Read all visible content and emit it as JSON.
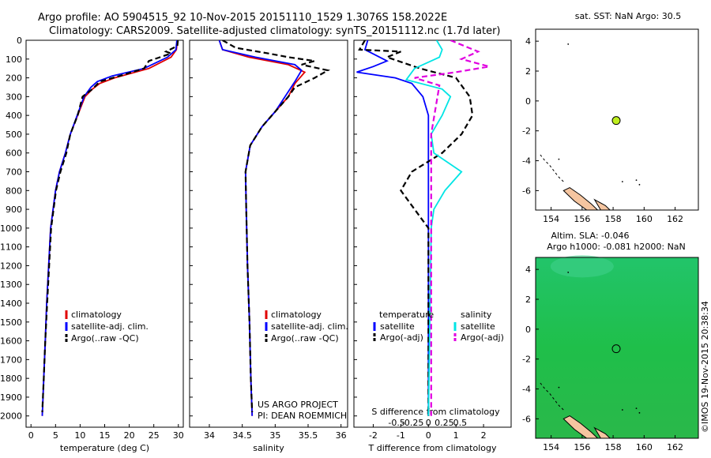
{
  "header": {
    "line1": "Argo profile: AO 5904515_92 10-Nov-2015 20151110_1529 1.3076S 158.2022E",
    "line2": "Climatology: CARS2009. Satellite-adjusted climatology: synTS_20151112.nc (1.7d later)"
  },
  "credit": "US ARGO PROJECT",
  "pi": "PI: DEAN ROEMMICH",
  "footer_stamp": "©IMOS 19-Nov-2015 20:38:34",
  "colors": {
    "climatology": "#e00000",
    "satellite": "#0000ff",
    "argo": "#000000",
    "cyan": "#00e5e5",
    "magenta": "#e000e0",
    "float": "#bfef1f",
    "land": "#f5c5a0",
    "sla_bg": "#1fc062"
  },
  "chart_data": [
    {
      "type": "line",
      "id": "temperature",
      "xlabel": "temperature (deg C)",
      "xlim": [
        -1,
        31
      ],
      "ylim": [
        0,
        2060
      ],
      "xticks": [
        0,
        5,
        10,
        15,
        20,
        25,
        30
      ],
      "yticks": [
        0,
        100,
        200,
        300,
        400,
        500,
        600,
        700,
        800,
        900,
        1000,
        1100,
        1200,
        1300,
        1400,
        1500,
        1600,
        1700,
        1800,
        1900,
        2000
      ],
      "legend": [
        "climatology",
        "satellite-adj. clim.",
        "Argo(..raw -QC)"
      ],
      "series": [
        {
          "name": "climatology",
          "style": "solid",
          "color": "#e00000",
          "points": [
            [
              29.8,
              0
            ],
            [
              29.6,
              50
            ],
            [
              28.5,
              90
            ],
            [
              24,
              150
            ],
            [
              17,
              200
            ],
            [
              14,
              230
            ],
            [
              12.5,
              260
            ],
            [
              11,
              300
            ],
            [
              9.5,
              400
            ],
            [
              8,
              500
            ],
            [
              7,
              600
            ],
            [
              5.8,
              700
            ],
            [
              5,
              800
            ],
            [
              4.5,
              900
            ],
            [
              4,
              1000
            ],
            [
              3.6,
              1200
            ],
            [
              3.2,
              1400
            ],
            [
              2.9,
              1600
            ],
            [
              2.6,
              1800
            ],
            [
              2.3,
              2000
            ]
          ]
        },
        {
          "name": "satellite-adj. clim.",
          "style": "solid",
          "color": "#0000ff",
          "points": [
            [
              29.7,
              0
            ],
            [
              29.5,
              50
            ],
            [
              27.8,
              90
            ],
            [
              23,
              150
            ],
            [
              16.5,
              190
            ],
            [
              13.5,
              220
            ],
            [
              12.2,
              250
            ],
            [
              10.8,
              300
            ],
            [
              9.4,
              400
            ],
            [
              8,
              500
            ],
            [
              7,
              600
            ],
            [
              5.8,
              700
            ],
            [
              5,
              800
            ],
            [
              4.5,
              900
            ],
            [
              4,
              1000
            ],
            [
              3.6,
              1200
            ],
            [
              3.2,
              1400
            ],
            [
              2.9,
              1600
            ],
            [
              2.6,
              1800
            ],
            [
              2.3,
              2000
            ]
          ]
        },
        {
          "name": "Argo(..raw -QC)",
          "style": "dashed",
          "color": "#000000",
          "points": [
            [
              29.9,
              0
            ],
            [
              29.8,
              30
            ],
            [
              27.5,
              60
            ],
            [
              28.5,
              70
            ],
            [
              24,
              110
            ],
            [
              23,
              150
            ],
            [
              18,
              190
            ],
            [
              14,
              220
            ],
            [
              12.5,
              260
            ],
            [
              10.5,
              300
            ],
            [
              9.5,
              400
            ],
            [
              8,
              500
            ],
            [
              7.2,
              600
            ],
            [
              6,
              700
            ],
            [
              5.1,
              800
            ],
            [
              4.6,
              900
            ],
            [
              4.1,
              1000
            ],
            [
              3.7,
              1200
            ],
            [
              3.3,
              1400
            ],
            [
              2.9,
              1600
            ],
            [
              2.6,
              1800
            ],
            [
              2.3,
              1980
            ]
          ]
        }
      ]
    },
    {
      "type": "line",
      "id": "salinity",
      "xlabel": "salinity",
      "xlim": [
        33.7,
        36.1
      ],
      "ylim": [
        0,
        2060
      ],
      "xticks": [
        34,
        34.5,
        35,
        35.5,
        36
      ],
      "yticks": [
        0,
        100,
        200,
        300,
        400,
        500,
        600,
        700,
        800,
        900,
        1000,
        1100,
        1200,
        1300,
        1400,
        1500,
        1600,
        1700,
        1800,
        1900,
        2000
      ],
      "legend": [
        "climatology",
        "satellite-adj. clim.",
        "Argo(..raw -QC)"
      ],
      "series": [
        {
          "name": "climatology",
          "style": "solid",
          "color": "#e00000",
          "points": [
            [
              34.15,
              0
            ],
            [
              34.2,
              50
            ],
            [
              34.6,
              90
            ],
            [
              35.2,
              130
            ],
            [
              35.45,
              170
            ],
            [
              35.3,
              230
            ],
            [
              35.2,
              300
            ],
            [
              35.0,
              380
            ],
            [
              34.8,
              460
            ],
            [
              34.62,
              560
            ],
            [
              34.55,
              700
            ],
            [
              34.56,
              900
            ],
            [
              34.58,
              1200
            ],
            [
              34.61,
              1500
            ],
            [
              34.63,
              1800
            ],
            [
              34.65,
              2000
            ]
          ]
        },
        {
          "name": "satellite-adj. clim.",
          "style": "solid",
          "color": "#0000ff",
          "points": [
            [
              34.15,
              0
            ],
            [
              34.2,
              50
            ],
            [
              34.7,
              90
            ],
            [
              35.3,
              130
            ],
            [
              35.4,
              160
            ],
            [
              35.3,
              220
            ],
            [
              35.15,
              300
            ],
            [
              35.0,
              380
            ],
            [
              34.8,
              460
            ],
            [
              34.62,
              560
            ],
            [
              34.55,
              700
            ],
            [
              34.56,
              900
            ],
            [
              34.58,
              1200
            ],
            [
              34.61,
              1500
            ],
            [
              34.63,
              1800
            ],
            [
              34.65,
              2000
            ]
          ]
        },
        {
          "name": "Argo(..raw -QC)",
          "style": "dashed",
          "color": "#000000",
          "points": [
            [
              34.2,
              0
            ],
            [
              34.4,
              40
            ],
            [
              34.9,
              70
            ],
            [
              35.2,
              90
            ],
            [
              35.6,
              110
            ],
            [
              35.4,
              130
            ],
            [
              35.8,
              160
            ],
            [
              35.6,
              200
            ],
            [
              35.3,
              250
            ],
            [
              35.2,
              300
            ],
            [
              35.0,
              380
            ],
            [
              34.8,
              460
            ],
            [
              34.62,
              560
            ],
            [
              34.55,
              700
            ],
            [
              34.56,
              900
            ],
            [
              34.58,
              1200
            ],
            [
              34.61,
              1500
            ],
            [
              34.63,
              1800
            ],
            [
              34.65,
              1980
            ]
          ]
        }
      ]
    },
    {
      "type": "line",
      "id": "difference",
      "xlabel": "T difference from climatology",
      "xlabel_top": "S difference from climatology",
      "xlim": [
        -2.7,
        3
      ],
      "ylim": [
        0,
        2060
      ],
      "xticks_T": [
        -2,
        -1,
        0,
        1,
        2
      ],
      "xticks_S": [
        -0.5,
        -0.25,
        0,
        0.25,
        0.5
      ],
      "yticks": [
        0,
        100,
        200,
        300,
        400,
        500,
        600,
        700,
        800,
        900,
        1000,
        1100,
        1200,
        1300,
        1400,
        1500,
        1600,
        1700,
        1800,
        1900,
        2000
      ],
      "legend_left_title": "temperature",
      "legend_right_title": "salinity",
      "legend": [
        "satellite",
        "Argo(-adj)",
        "satellite",
        "Argo(-adj)"
      ],
      "series": [
        {
          "name": "temperature satellite",
          "style": "solid",
          "color": "#0000ff",
          "points": [
            [
              -2.2,
              0
            ],
            [
              -2.3,
              50
            ],
            [
              -1.5,
              110
            ],
            [
              -2.0,
              140
            ],
            [
              -2.6,
              170
            ],
            [
              -1.2,
              200
            ],
            [
              -0.6,
              230
            ],
            [
              -0.2,
              300
            ],
            [
              0,
              400
            ],
            [
              0,
              600
            ],
            [
              0,
              2000
            ]
          ]
        },
        {
          "name": "temperature Argo(-adj)",
          "style": "dashed",
          "color": "#000000",
          "points": [
            [
              -2.3,
              0
            ],
            [
              -2.5,
              50
            ],
            [
              -1.0,
              60
            ],
            [
              -1.5,
              90
            ],
            [
              -0.3,
              150
            ],
            [
              1.0,
              200
            ],
            [
              1.5,
              300
            ],
            [
              1.6,
              400
            ],
            [
              1.2,
              500
            ],
            [
              0.5,
              600
            ],
            [
              -0.6,
              700
            ],
            [
              -1.0,
              800
            ],
            [
              -0.5,
              900
            ],
            [
              0,
              1000
            ],
            [
              0,
              2000
            ]
          ]
        },
        {
          "name": "salinity satellite",
          "style": "solid",
          "color": "#00e5e5",
          "points": [
            [
              0.3,
              0
            ],
            [
              0.5,
              50
            ],
            [
              0.4,
              90
            ],
            [
              -0.5,
              150
            ],
            [
              -0.8,
              210
            ],
            [
              0.5,
              260
            ],
            [
              0.8,
              300
            ],
            [
              0.5,
              400
            ],
            [
              0.1,
              500
            ],
            [
              0.2,
              600
            ],
            [
              1.2,
              700
            ],
            [
              0.6,
              800
            ],
            [
              0.2,
              900
            ],
            [
              0.1,
              1000
            ],
            [
              0,
              2000
            ]
          ]
        },
        {
          "name": "salinity Argo(-adj)",
          "style": "dashed",
          "color": "#e000e0",
          "points": [
            [
              0.8,
              0
            ],
            [
              1.8,
              60
            ],
            [
              1.2,
              100
            ],
            [
              2.2,
              140
            ],
            [
              1.0,
              170
            ],
            [
              -0.5,
              200
            ],
            [
              0.4,
              240
            ],
            [
              0.1,
              500
            ],
            [
              0.1,
              2000
            ]
          ]
        }
      ]
    },
    {
      "type": "scatter",
      "id": "sst-map",
      "title": "sat. SST: NaN Argo: 30.5",
      "xlim": [
        153,
        163.5
      ],
      "ylim": [
        -7.3,
        4.8
      ],
      "xticks": [
        154,
        156,
        158,
        160,
        162
      ],
      "yticks": [
        -6,
        -4,
        -2,
        0,
        2,
        4
      ],
      "float_position": {
        "lon": 158.2,
        "lat": -1.31
      }
    },
    {
      "type": "scatter",
      "id": "sla-map",
      "title": "Altim. SLA: -0.046",
      "subtitle": "Argo h1000: -0.081 h2000: NaN",
      "xlim": [
        153,
        163.5
      ],
      "ylim": [
        -7.3,
        4.8
      ],
      "xticks": [
        154,
        156,
        158,
        160,
        162
      ],
      "yticks": [
        -6,
        -4,
        -2,
        0,
        2,
        4
      ],
      "float_position": {
        "lon": 158.2,
        "lat": -1.31
      }
    }
  ]
}
